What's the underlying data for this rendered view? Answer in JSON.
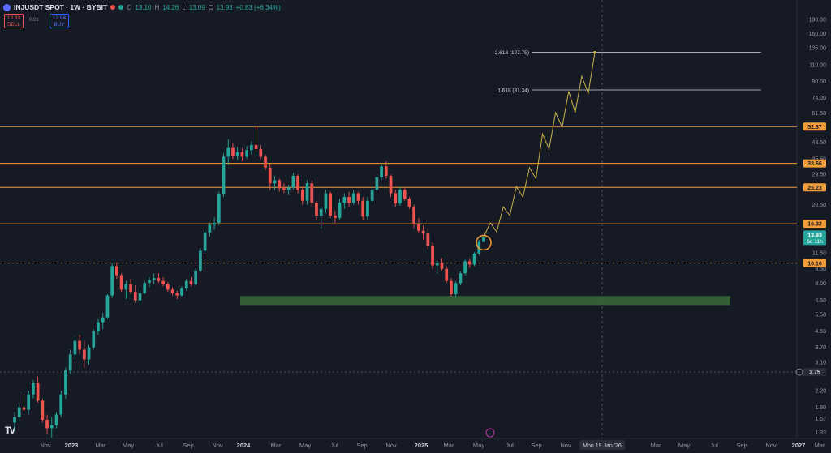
{
  "header": {
    "symbol": "INJUSDT SPOT · 1W · BYBIT",
    "o_label": "O",
    "o_value": "13.10",
    "h_label": "H",
    "h_value": "14.26",
    "l_label": "L",
    "l_value": "13.09",
    "c_label": "C",
    "c_value": "13.93",
    "change": "+0.83 (+6.34%)"
  },
  "trade": {
    "sell_price": "13.93",
    "sell_label": "SELL",
    "spread": "0.01",
    "buy_price": "13.94",
    "buy_label": "BUY"
  },
  "chart_data": {
    "type": "candlestick",
    "scale": "log",
    "grid": false,
    "y_ticks": [
      "190.00",
      "160.00",
      "135.00",
      "110.00",
      "90.00",
      "74.00",
      "61.50",
      "43.50",
      "35.50",
      "29.50",
      "20.50",
      "11.50",
      "9.50",
      "8.00",
      "6.50",
      "5.50",
      "4.50",
      "3.70",
      "3.10",
      "2.20",
      "1.80",
      "1.57",
      "1.33"
    ],
    "x_ticks": [
      "Nov",
      "2023",
      "Mar",
      "May",
      "Jul",
      "Sep",
      "Nov",
      "2024",
      "Mar",
      "May",
      "Jul",
      "Sep",
      "Nov",
      "2025",
      "Mar",
      "May",
      "Jul",
      "Sep",
      "Nov",
      "Mar",
      "May",
      "Jul",
      "Sep",
      "Nov",
      "2027",
      "Mar"
    ],
    "x_crosshair_label": "Mon 19 Jan '26",
    "candles": [
      {
        "o": 1.5,
        "h": 1.7,
        "l": 1.35,
        "c": 1.6
      },
      {
        "o": 1.6,
        "h": 1.9,
        "l": 1.5,
        "c": 1.8
      },
      {
        "o": 1.8,
        "h": 2.1,
        "l": 1.7,
        "c": 1.75
      },
      {
        "o": 1.75,
        "h": 2.2,
        "l": 1.65,
        "c": 2.1
      },
      {
        "o": 2.1,
        "h": 2.5,
        "l": 2.0,
        "c": 2.4
      },
      {
        "o": 2.4,
        "h": 2.6,
        "l": 1.9,
        "c": 1.95
      },
      {
        "o": 1.95,
        "h": 2.0,
        "l": 1.5,
        "c": 1.55
      },
      {
        "o": 1.55,
        "h": 1.65,
        "l": 1.3,
        "c": 1.4
      },
      {
        "o": 1.4,
        "h": 1.6,
        "l": 1.25,
        "c": 1.45
      },
      {
        "o": 1.45,
        "h": 1.7,
        "l": 1.4,
        "c": 1.65
      },
      {
        "o": 1.65,
        "h": 2.2,
        "l": 1.6,
        "c": 2.1
      },
      {
        "o": 2.1,
        "h": 2.9,
        "l": 2.0,
        "c": 2.8
      },
      {
        "o": 2.8,
        "h": 3.6,
        "l": 2.7,
        "c": 3.4
      },
      {
        "o": 3.4,
        "h": 4.2,
        "l": 3.2,
        "c": 4.0
      },
      {
        "o": 4.0,
        "h": 4.3,
        "l": 3.4,
        "c": 3.6
      },
      {
        "o": 3.6,
        "h": 4.0,
        "l": 2.9,
        "c": 3.2
      },
      {
        "o": 3.2,
        "h": 3.8,
        "l": 3.0,
        "c": 3.7
      },
      {
        "o": 3.7,
        "h": 4.6,
        "l": 3.6,
        "c": 4.5
      },
      {
        "o": 4.5,
        "h": 5.2,
        "l": 4.3,
        "c": 5.0
      },
      {
        "o": 5.0,
        "h": 5.6,
        "l": 4.6,
        "c": 5.3
      },
      {
        "o": 5.3,
        "h": 7.0,
        "l": 5.2,
        "c": 6.9
      },
      {
        "o": 6.9,
        "h": 10.2,
        "l": 6.7,
        "c": 9.8
      },
      {
        "o": 9.8,
        "h": 10.3,
        "l": 8.4,
        "c": 8.8
      },
      {
        "o": 8.8,
        "h": 9.0,
        "l": 7.2,
        "c": 7.4
      },
      {
        "o": 7.4,
        "h": 8.2,
        "l": 6.6,
        "c": 7.9
      },
      {
        "o": 7.9,
        "h": 8.4,
        "l": 7.0,
        "c": 7.2
      },
      {
        "o": 7.2,
        "h": 7.8,
        "l": 6.3,
        "c": 6.5
      },
      {
        "o": 6.5,
        "h": 7.4,
        "l": 6.2,
        "c": 7.1
      },
      {
        "o": 7.1,
        "h": 8.2,
        "l": 7.0,
        "c": 8.0
      },
      {
        "o": 8.0,
        "h": 8.6,
        "l": 7.6,
        "c": 8.3
      },
      {
        "o": 8.3,
        "h": 9.0,
        "l": 7.9,
        "c": 8.5
      },
      {
        "o": 8.5,
        "h": 9.0,
        "l": 8.0,
        "c": 8.2
      },
      {
        "o": 8.2,
        "h": 8.6,
        "l": 7.7,
        "c": 7.9
      },
      {
        "o": 7.9,
        "h": 8.1,
        "l": 7.2,
        "c": 7.4
      },
      {
        "o": 7.4,
        "h": 7.6,
        "l": 6.9,
        "c": 7.1
      },
      {
        "o": 7.1,
        "h": 7.3,
        "l": 6.6,
        "c": 6.9
      },
      {
        "o": 6.9,
        "h": 7.7,
        "l": 6.8,
        "c": 7.5
      },
      {
        "o": 7.5,
        "h": 8.4,
        "l": 7.3,
        "c": 8.2
      },
      {
        "o": 8.2,
        "h": 8.6,
        "l": 7.7,
        "c": 7.9
      },
      {
        "o": 7.9,
        "h": 9.6,
        "l": 7.8,
        "c": 9.3
      },
      {
        "o": 9.3,
        "h": 12.2,
        "l": 9.1,
        "c": 11.8
      },
      {
        "o": 11.8,
        "h": 15.2,
        "l": 11.4,
        "c": 14.7
      },
      {
        "o": 14.7,
        "h": 16.6,
        "l": 14.0,
        "c": 16.1
      },
      {
        "o": 16.1,
        "h": 17.6,
        "l": 15.2,
        "c": 16.5
      },
      {
        "o": 16.5,
        "h": 24.0,
        "l": 16.0,
        "c": 23.2
      },
      {
        "o": 23.2,
        "h": 38.0,
        "l": 22.5,
        "c": 36.5
      },
      {
        "o": 36.5,
        "h": 45.0,
        "l": 33.0,
        "c": 40.5
      },
      {
        "o": 40.5,
        "h": 43.0,
        "l": 35.5,
        "c": 37.0
      },
      {
        "o": 37.0,
        "h": 41.0,
        "l": 35.0,
        "c": 38.5
      },
      {
        "o": 38.5,
        "h": 40.5,
        "l": 34.5,
        "c": 36.5
      },
      {
        "o": 36.5,
        "h": 41.5,
        "l": 35.5,
        "c": 39.5
      },
      {
        "o": 39.5,
        "h": 44.0,
        "l": 37.5,
        "c": 42.0
      },
      {
        "o": 42.0,
        "h": 52.0,
        "l": 38.5,
        "c": 40.0
      },
      {
        "o": 40.0,
        "h": 42.0,
        "l": 35.5,
        "c": 36.5
      },
      {
        "o": 36.5,
        "h": 37.5,
        "l": 31.0,
        "c": 32.0
      },
      {
        "o": 32.0,
        "h": 33.5,
        "l": 24.5,
        "c": 26.5
      },
      {
        "o": 26.5,
        "h": 29.0,
        "l": 24.5,
        "c": 27.5
      },
      {
        "o": 27.5,
        "h": 28.0,
        "l": 24.0,
        "c": 25.0
      },
      {
        "o": 25.0,
        "h": 26.5,
        "l": 23.5,
        "c": 24.5
      },
      {
        "o": 24.5,
        "h": 26.0,
        "l": 23.0,
        "c": 25.2
      },
      {
        "o": 25.2,
        "h": 30.0,
        "l": 24.5,
        "c": 29.0
      },
      {
        "o": 29.0,
        "h": 29.5,
        "l": 23.5,
        "c": 24.5
      },
      {
        "o": 24.5,
        "h": 25.5,
        "l": 20.5,
        "c": 21.5
      },
      {
        "o": 21.5,
        "h": 27.5,
        "l": 20.5,
        "c": 26.5
      },
      {
        "o": 26.5,
        "h": 27.5,
        "l": 20.0,
        "c": 21.0
      },
      {
        "o": 21.0,
        "h": 21.5,
        "l": 17.0,
        "c": 18.0
      },
      {
        "o": 18.0,
        "h": 20.0,
        "l": 15.5,
        "c": 19.5
      },
      {
        "o": 19.5,
        "h": 24.5,
        "l": 18.5,
        "c": 23.5
      },
      {
        "o": 23.5,
        "h": 24.0,
        "l": 17.5,
        "c": 18.0
      },
      {
        "o": 18.0,
        "h": 19.0,
        "l": 16.5,
        "c": 17.5
      },
      {
        "o": 17.5,
        "h": 22.0,
        "l": 17.0,
        "c": 21.0
      },
      {
        "o": 21.0,
        "h": 23.5,
        "l": 19.5,
        "c": 22.5
      },
      {
        "o": 22.5,
        "h": 24.0,
        "l": 20.0,
        "c": 21.0
      },
      {
        "o": 21.0,
        "h": 24.5,
        "l": 20.5,
        "c": 23.5
      },
      {
        "o": 23.5,
        "h": 24.0,
        "l": 20.5,
        "c": 21.5
      },
      {
        "o": 21.5,
        "h": 22.5,
        "l": 17.0,
        "c": 17.8
      },
      {
        "o": 17.8,
        "h": 22.5,
        "l": 17.0,
        "c": 21.5
      },
      {
        "o": 21.5,
        "h": 25.5,
        "l": 21.0,
        "c": 24.5
      },
      {
        "o": 24.5,
        "h": 29.5,
        "l": 24.0,
        "c": 28.5
      },
      {
        "o": 28.5,
        "h": 33.5,
        "l": 27.5,
        "c": 32.5
      },
      {
        "o": 32.5,
        "h": 34.5,
        "l": 28.0,
        "c": 29.0
      },
      {
        "o": 29.0,
        "h": 29.5,
        "l": 22.5,
        "c": 23.5
      },
      {
        "o": 23.5,
        "h": 24.5,
        "l": 20.0,
        "c": 20.8
      },
      {
        "o": 20.8,
        "h": 25.5,
        "l": 20.2,
        "c": 24.5
      },
      {
        "o": 24.5,
        "h": 25.0,
        "l": 21.5,
        "c": 22.0
      },
      {
        "o": 22.0,
        "h": 22.5,
        "l": 19.5,
        "c": 20.0
      },
      {
        "o": 20.0,
        "h": 20.5,
        "l": 15.5,
        "c": 16.2
      },
      {
        "o": 16.2,
        "h": 17.5,
        "l": 14.5,
        "c": 15.0
      },
      {
        "o": 15.0,
        "h": 16.0,
        "l": 13.5,
        "c": 14.5
      },
      {
        "o": 14.5,
        "h": 15.5,
        "l": 12.0,
        "c": 12.5
      },
      {
        "o": 12.5,
        "h": 13.0,
        "l": 9.5,
        "c": 9.9
      },
      {
        "o": 9.9,
        "h": 10.5,
        "l": 9.0,
        "c": 10.2
      },
      {
        "o": 10.2,
        "h": 10.8,
        "l": 9.3,
        "c": 9.5
      },
      {
        "o": 9.5,
        "h": 9.8,
        "l": 8.0,
        "c": 8.2
      },
      {
        "o": 8.2,
        "h": 8.5,
        "l": 6.8,
        "c": 7.0
      },
      {
        "o": 7.0,
        "h": 8.2,
        "l": 6.7,
        "c": 8.0
      },
      {
        "o": 8.0,
        "h": 9.2,
        "l": 7.8,
        "c": 9.0
      },
      {
        "o": 9.0,
        "h": 10.6,
        "l": 8.8,
        "c": 10.4
      },
      {
        "o": 10.4,
        "h": 10.8,
        "l": 9.6,
        "c": 10.0
      },
      {
        "o": 10.0,
        "h": 11.6,
        "l": 9.8,
        "c": 11.4
      },
      {
        "o": 11.4,
        "h": 13.5,
        "l": 11.2,
        "c": 13.1
      },
      {
        "o": 13.1,
        "h": 14.26,
        "l": 13.09,
        "c": 13.93
      }
    ],
    "projection_path": [
      13.9,
      16.5,
      14.8,
      20.0,
      18.0,
      25.5,
      22.5,
      32.0,
      28.0,
      48.0,
      40.0,
      62.0,
      52.0,
      80.0,
      62.0,
      96.0,
      78.0,
      127.75
    ],
    "horizontal_levels": [
      {
        "price": 52.37,
        "label": "52.37",
        "color": "#f29d38"
      },
      {
        "price": 33.66,
        "label": "33.66",
        "color": "#f29d38"
      },
      {
        "price": 25.23,
        "label": "25.23",
        "color": "#f29d38"
      },
      {
        "price": 16.32,
        "label": "16.32",
        "color": "#f29d38"
      }
    ],
    "dashed_levels": [
      {
        "price": 10.16,
        "label": "10.16",
        "color": "#f29d38"
      },
      {
        "price": 2.75,
        "label": "2.75",
        "color": "#6b707c"
      }
    ],
    "fib_levels": [
      {
        "price": 127.75,
        "label": "2.618 (127.75)"
      },
      {
        "price": 81.34,
        "label": "1.618 (81.34)"
      }
    ],
    "support_zone": {
      "top": 6.85,
      "bottom": 6.15,
      "color": "#3a6b3a"
    },
    "current_price": {
      "price": 13.93,
      "label": "13.93",
      "sublabel": "6d 11h",
      "color": "#26a69a"
    },
    "up_color": "#26a69a",
    "down_color": "#ef5350",
    "projection_color": "#c9b348"
  }
}
